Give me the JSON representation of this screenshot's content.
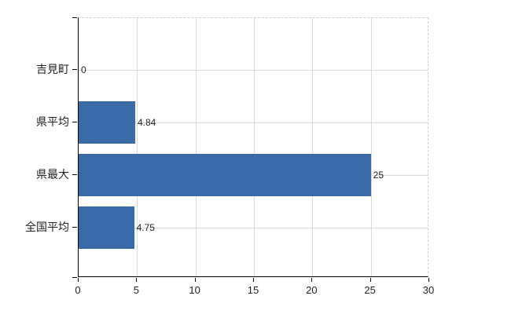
{
  "chart_data": {
    "type": "bar",
    "orientation": "horizontal",
    "categories": [
      "吉見町",
      "県平均",
      "県最大",
      "全国平均"
    ],
    "values": [
      0,
      4.84,
      25,
      4.75
    ],
    "value_labels": [
      "0",
      "4.84",
      "25",
      "4.75"
    ],
    "xlim": [
      0,
      30
    ],
    "x_ticks": [
      0,
      5,
      10,
      15,
      20,
      25,
      30
    ],
    "x_tick_labels": [
      "0",
      "5",
      "10",
      "15",
      "20",
      "25",
      "30"
    ],
    "grid": "vertical gridlines at x ticks; horizontal guide line through each category; top and right plot borders dashed",
    "legend": "none",
    "colors": {
      "bar": "#3a6aa8",
      "vertical_gridline": "#d9d9d9",
      "horizontal_guide": "#d6dad6",
      "axis": "#000000",
      "dashed_border": "#cfcfcf",
      "text": "#212121",
      "background": "#ffffff"
    }
  }
}
